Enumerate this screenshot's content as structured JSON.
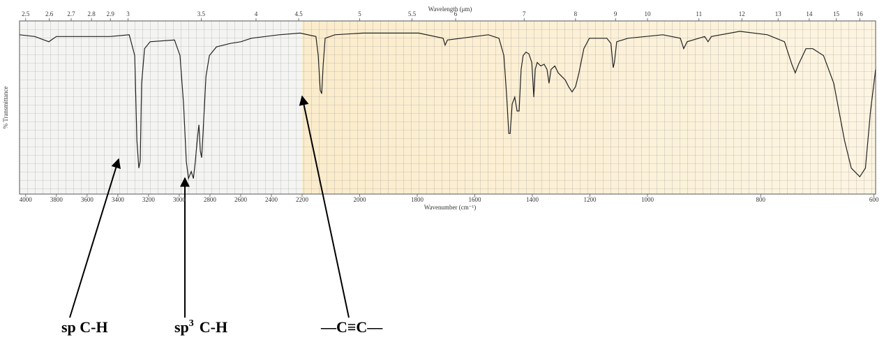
{
  "chart_data": {
    "type": "line",
    "x2label": "Wavelength (μm)",
    "xlabel": "Wavenumber (cm⁻¹)",
    "ylabel": "% Transmittance",
    "xlim": [
      4040,
      597
    ],
    "x_scale_breaks": [
      2200,
      1000
    ],
    "xticks": [
      4000,
      3800,
      3600,
      3400,
      3200,
      3000,
      2800,
      2600,
      2400,
      2200,
      2000,
      1800,
      1600,
      1400,
      1200,
      1000,
      800,
      600
    ],
    "x2ticks": [
      2.5,
      2.6,
      2.7,
      2.8,
      2.9,
      3,
      3.5,
      4,
      4.5,
      5,
      5.5,
      6,
      7,
      8,
      9,
      10,
      11,
      12,
      13,
      14,
      15,
      16
    ],
    "ylim": [
      0,
      100
    ],
    "grid": true,
    "color": "#222222",
    "x": [
      4040,
      3940,
      3849,
      3800,
      3600,
      3450,
      3326,
      3290,
      3276,
      3263,
      3254,
      3245,
      3226,
      3190,
      3031,
      2995,
      2972,
      2954,
      2940,
      2922,
      2908,
      2895,
      2881,
      2872,
      2863,
      2854,
      2845,
      2826,
      2804,
      2758,
      2713,
      2667,
      2599,
      2531,
      2349,
      2213,
      2152,
      2144,
      2137,
      2132,
      2127,
      2120,
      2086,
      1989,
      1795,
      1710,
      1703,
      1695,
      1553,
      1516,
      1499,
      1489,
      1482,
      1477,
      1470,
      1461,
      1453,
      1446,
      1439,
      1432,
      1422,
      1412,
      1402,
      1395,
      1390,
      1383,
      1371,
      1359,
      1349,
      1342,
      1335,
      1322,
      1310,
      1298,
      1286,
      1274,
      1262,
      1250,
      1238,
      1221,
      1202,
      1141,
      1127,
      1119,
      1115,
      1107,
      1068,
      1007,
      973,
      942,
      936,
      930,
      899,
      893,
      887,
      837,
      788,
      758,
      745,
      739,
      733,
      720,
      708,
      689,
      671,
      652,
      640,
      625,
      615,
      606,
      597
    ],
    "values": [
      92,
      91,
      88,
      91,
      91,
      91,
      92,
      80,
      31,
      15,
      19,
      64,
      84,
      88,
      89,
      80,
      52,
      19,
      9,
      13,
      9,
      19,
      33,
      40,
      25,
      21,
      35,
      68,
      80,
      85,
      86,
      87,
      88,
      90,
      92,
      93,
      91,
      80,
      60,
      58,
      74,
      90,
      92,
      93,
      93,
      90,
      86,
      89,
      92,
      90,
      80,
      56,
      35,
      35,
      52,
      56,
      48,
      48,
      72,
      80,
      82,
      81,
      76,
      56,
      72,
      76,
      74,
      75,
      72,
      64,
      72,
      74,
      70,
      68,
      66,
      62,
      59,
      62,
      70,
      84,
      90,
      90,
      87,
      73,
      76,
      88,
      90,
      91,
      92,
      90,
      84,
      88,
      91,
      88,
      91,
      94,
      92,
      88,
      75,
      70,
      75,
      84,
      84,
      80,
      64,
      31,
      15,
      10,
      15,
      48,
      72
    ],
    "annotations": [
      {
        "text": "sp C-H"
      },
      {
        "text": "sp",
        "superscript": "3",
        "text_after": "C-H"
      },
      {
        "text": "—C≡C—"
      }
    ]
  }
}
